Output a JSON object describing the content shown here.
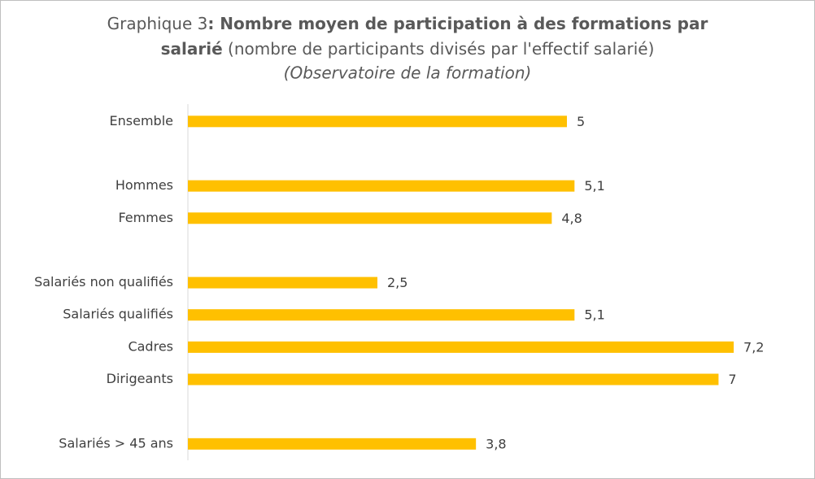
{
  "chart_data": {
    "type": "bar",
    "orientation": "horizontal",
    "title": [
      "Graphique 3",
      ": Nombre moyen de participation à des formations par",
      "salarié",
      " (nombre de participants divisés par l'effectif salarié)"
    ],
    "subtitle": "(Observatoire de la formation)",
    "categories": [
      "Ensemble",
      null,
      "Hommes",
      "Femmes",
      null,
      "Salariés non qualifiés",
      "Salariés qualifiés",
      "Cadres",
      "Dirigeants",
      null,
      "Salariés > 45 ans"
    ],
    "values": [
      5,
      null,
      5.1,
      4.8,
      null,
      2.5,
      5.1,
      7.2,
      7,
      null,
      3.8
    ],
    "value_labels": [
      "5",
      null,
      "5,1",
      "4,8",
      null,
      "2,5",
      "5,1",
      "7,2",
      "7",
      null,
      "3,8"
    ],
    "color": "#ffc000",
    "xlim": [
      0,
      8
    ]
  }
}
